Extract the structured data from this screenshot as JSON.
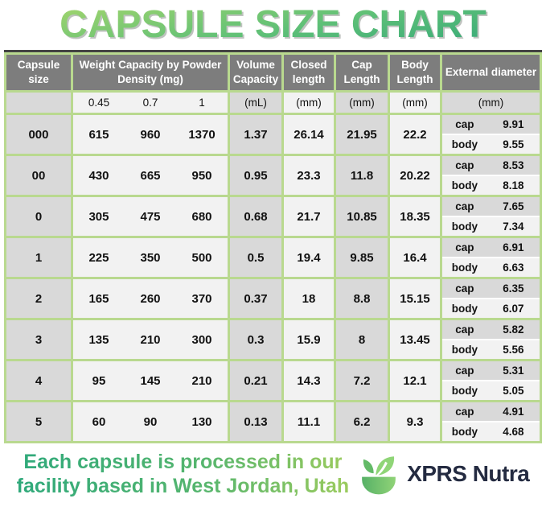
{
  "title": "CAPSULE SIZE CHART",
  "colors": {
    "header_bg": "#7d7d7d",
    "cell_gray": "#d9d9d9",
    "cell_light": "#f2f2f2",
    "grid_green": "#b9d98f",
    "top_rule": "#434343",
    "title_gradient_start": "#aad76c",
    "title_gradient_end": "#2da47a",
    "brand_navy": "#242b41"
  },
  "table": {
    "headers": {
      "capsule_size": "Capsule size",
      "weight": "Weight Capacity by Powder Density (mg)",
      "volume": "Volume Capacity",
      "closed": "Closed length",
      "cap": "Cap Length",
      "body": "Body Length",
      "external": "External diameter"
    },
    "units": {
      "density_045": "0.45",
      "density_07": "0.7",
      "density_1": "1",
      "volume": "(mL)",
      "closed": "(mm)",
      "cap": "(mm)",
      "body": "(mm)",
      "external": "(mm)"
    },
    "row_labels": {
      "cap": "cap",
      "body": "body"
    },
    "rows": [
      {
        "size": "000",
        "d045": "615",
        "d07": "960",
        "d1": "1370",
        "vol": "1.37",
        "closed": "26.14",
        "cap_len": "21.95",
        "body_len": "22.2",
        "cap_dia": "9.91",
        "body_dia": "9.55"
      },
      {
        "size": "00",
        "d045": "430",
        "d07": "665",
        "d1": "950",
        "vol": "0.95",
        "closed": "23.3",
        "cap_len": "11.8",
        "body_len": "20.22",
        "cap_dia": "8.53",
        "body_dia": "8.18"
      },
      {
        "size": "0",
        "d045": "305",
        "d07": "475",
        "d1": "680",
        "vol": "0.68",
        "closed": "21.7",
        "cap_len": "10.85",
        "body_len": "18.35",
        "cap_dia": "7.65",
        "body_dia": "7.34"
      },
      {
        "size": "1",
        "d045": "225",
        "d07": "350",
        "d1": "500",
        "vol": "0.5",
        "closed": "19.4",
        "cap_len": "9.85",
        "body_len": "16.4",
        "cap_dia": "6.91",
        "body_dia": "6.63"
      },
      {
        "size": "2",
        "d045": "165",
        "d07": "260",
        "d1": "370",
        "vol": "0.37",
        "closed": "18",
        "cap_len": "8.8",
        "body_len": "15.15",
        "cap_dia": "6.35",
        "body_dia": "6.07"
      },
      {
        "size": "3",
        "d045": "135",
        "d07": "210",
        "d1": "300",
        "vol": "0.3",
        "closed": "15.9",
        "cap_len": "8",
        "body_len": "13.45",
        "cap_dia": "5.82",
        "body_dia": "5.56"
      },
      {
        "size": "4",
        "d045": "95",
        "d07": "145",
        "d1": "210",
        "vol": "0.21",
        "closed": "14.3",
        "cap_len": "7.2",
        "body_len": "12.1",
        "cap_dia": "5.31",
        "body_dia": "5.05"
      },
      {
        "size": "5",
        "d045": "60",
        "d07": "90",
        "d1": "130",
        "vol": "0.13",
        "closed": "11.1",
        "cap_len": "6.2",
        "body_len": "9.3",
        "cap_dia": "4.91",
        "body_dia": "4.68"
      }
    ]
  },
  "footer": {
    "line1": "Each capsule is processed in our",
    "line2": "facility based in West Jordan, Utah",
    "brand": "XPRS Nutra",
    "logo": "leaf-bowl-icon"
  }
}
